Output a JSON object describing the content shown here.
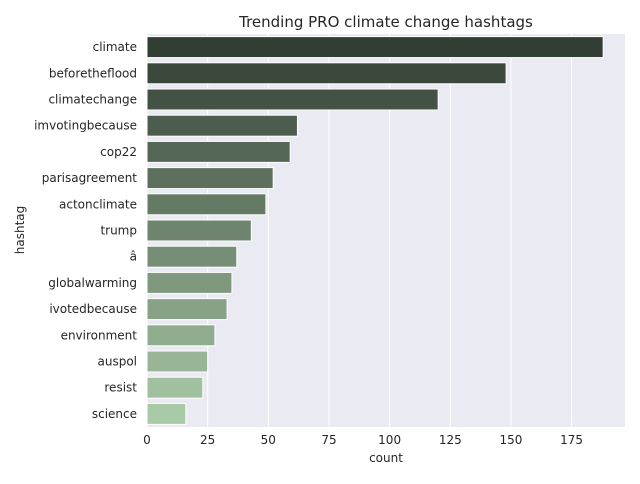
{
  "chart_data": {
    "type": "bar",
    "orientation": "horizontal",
    "title": "Trending PRO climate change hashtags",
    "xlabel": "count",
    "ylabel": "hashtag",
    "categories": [
      "climate",
      "beforetheflood",
      "climatechange",
      "imvotingbecause",
      "cop22",
      "parisagreement",
      "actonclimate",
      "trump",
      "â",
      "globalwarming",
      "ivotedbecause",
      "environment",
      "auspol",
      "resist",
      "science"
    ],
    "values": [
      188,
      148,
      120,
      62,
      59,
      52,
      49,
      43,
      37,
      35,
      33,
      28,
      25,
      23,
      16
    ],
    "xlim": [
      0,
      197
    ],
    "xticks": [
      0,
      25,
      50,
      75,
      100,
      125,
      150,
      175
    ],
    "grid": true,
    "legend": "none",
    "colors": {
      "background": "#eaeaf2",
      "grid": "#ffffff",
      "bar_start": "#323e34",
      "bar_end": "#a9caa7",
      "text": "#262626"
    }
  }
}
